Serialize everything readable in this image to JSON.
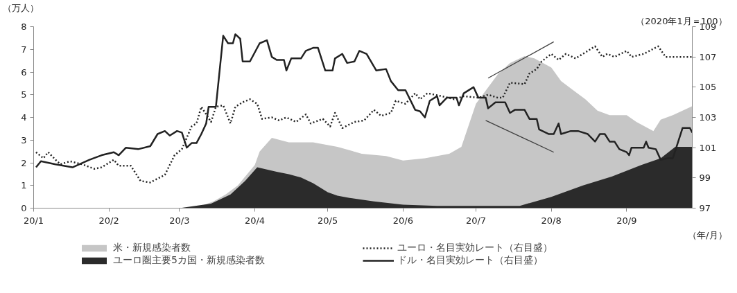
{
  "chart_data": {
    "type": "area",
    "ylabel": "（万人）",
    "y2label": "（2020年1月＝100）",
    "xlabel": "（年/月）",
    "xlim": [
      "2020-01-01",
      "2020-09-28"
    ],
    "xticks": [
      {
        "value": "2020-01-01",
        "label": "20/1"
      },
      {
        "value": "2020-02-01",
        "label": "20/2"
      },
      {
        "value": "2020-03-01",
        "label": "20/3"
      },
      {
        "value": "2020-04-01",
        "label": "20/4"
      },
      {
        "value": "2020-05-01",
        "label": "20/5"
      },
      {
        "value": "2020-06-01",
        "label": "20/6"
      },
      {
        "value": "2020-07-01",
        "label": "20/7"
      },
      {
        "value": "2020-08-01",
        "label": "20/8"
      },
      {
        "value": "2020-09-01",
        "label": "20/9"
      }
    ],
    "ylim": [
      0,
      8
    ],
    "yticks": [
      0,
      1,
      2,
      3,
      4,
      5,
      6,
      7,
      8
    ],
    "y2lim": [
      97,
      109
    ],
    "y2ticks": [
      97,
      99,
      101,
      103,
      105,
      107,
      109
    ],
    "grid": false,
    "legend": "bottom",
    "series": [
      {
        "name": "米・新規感染者数",
        "type": "area",
        "color": "#c6c6c6",
        "x": [
          "2020-03-01",
          "2020-03-10",
          "2020-03-15",
          "2020-03-20",
          "2020-03-25",
          "2020-04-01",
          "2020-04-03",
          "2020-04-08",
          "2020-04-15",
          "2020-04-25",
          "2020-05-05",
          "2020-05-15",
          "2020-05-25",
          "2020-06-01",
          "2020-06-10",
          "2020-06-20",
          "2020-06-25",
          "2020-07-01",
          "2020-07-10",
          "2020-07-15",
          "2020-07-21",
          "2020-07-25",
          "2020-08-01",
          "2020-08-05",
          "2020-08-10",
          "2020-08-15",
          "2020-08-20",
          "2020-08-25",
          "2020-09-01",
          "2020-09-05",
          "2020-09-12",
          "2020-09-15",
          "2020-09-20",
          "2020-09-28"
        ],
        "values": [
          0,
          0.1,
          0.3,
          0.6,
          1.0,
          1.9,
          2.5,
          3.1,
          2.9,
          2.9,
          2.7,
          2.4,
          2.3,
          2.1,
          2.2,
          2.4,
          2.7,
          4.6,
          5.9,
          6.4,
          6.7,
          6.6,
          6.2,
          5.6,
          5.2,
          4.8,
          4.3,
          4.1,
          4.1,
          3.8,
          3.4,
          3.9,
          4.1,
          4.5
        ]
      },
      {
        "name": "ユーロ圏主要5カ国・新規感染者数",
        "type": "area",
        "color": "#2b2b2b",
        "x": [
          "2020-03-01",
          "2020-03-14",
          "2020-03-22",
          "2020-03-28",
          "2020-04-02",
          "2020-04-10",
          "2020-04-15",
          "2020-04-20",
          "2020-04-25",
          "2020-05-01",
          "2020-05-05",
          "2020-05-10",
          "2020-05-20",
          "2020-06-01",
          "2020-06-15",
          "2020-07-01",
          "2020-07-19",
          "2020-08-01",
          "2020-08-14",
          "2020-08-26",
          "2020-09-07",
          "2020-09-15",
          "2020-09-21",
          "2020-09-28"
        ],
        "values": [
          0,
          0.2,
          0.6,
          1.2,
          1.8,
          1.6,
          1.5,
          1.35,
          1.1,
          0.7,
          0.55,
          0.45,
          0.3,
          0.15,
          0.1,
          0.1,
          0.1,
          0.5,
          1.0,
          1.4,
          1.9,
          2.2,
          2.7,
          2.7
        ]
      },
      {
        "name": "ユーロ・名目実効レート（右目盛）",
        "type": "line",
        "axis": "y2",
        "line_style": "dotted",
        "color": "#222222",
        "x": [
          "2020-01-02",
          "2020-01-05",
          "2020-01-07",
          "2020-01-10",
          "2020-01-12",
          "2020-01-16",
          "2020-01-21",
          "2020-01-26",
          "2020-01-29",
          "2020-02-03",
          "2020-02-05",
          "2020-02-10",
          "2020-02-14",
          "2020-02-18",
          "2020-02-24",
          "2020-02-28",
          "2020-03-02",
          "2020-03-06",
          "2020-03-08",
          "2020-03-10",
          "2020-03-12",
          "2020-03-14",
          "2020-03-16",
          "2020-03-19",
          "2020-03-22",
          "2020-03-24",
          "2020-03-27",
          "2020-03-30",
          "2020-04-02",
          "2020-04-04",
          "2020-04-08",
          "2020-04-11",
          "2020-04-14",
          "2020-04-18",
          "2020-04-22",
          "2020-04-24",
          "2020-04-29",
          "2020-05-02",
          "2020-05-04",
          "2020-05-07",
          "2020-05-12",
          "2020-05-16",
          "2020-05-20",
          "2020-05-23",
          "2020-05-27",
          "2020-05-29",
          "2020-06-02",
          "2020-06-06",
          "2020-06-08",
          "2020-06-11",
          "2020-06-17",
          "2020-06-22",
          "2020-06-26",
          "2020-07-02",
          "2020-07-06",
          "2020-07-10",
          "2020-07-12",
          "2020-07-15",
          "2020-07-21",
          "2020-07-23",
          "2020-07-26",
          "2020-07-28",
          "2020-08-01",
          "2020-08-04",
          "2020-08-07",
          "2020-08-11",
          "2020-08-14",
          "2020-08-19",
          "2020-08-22",
          "2020-08-24",
          "2020-08-27",
          "2020-09-01",
          "2020-09-03",
          "2020-09-08",
          "2020-09-14",
          "2020-09-17",
          "2020-09-22",
          "2020-09-28"
        ],
        "values": [
          100.7,
          100.3,
          100.7,
          100.2,
          99.9,
          100.1,
          99.9,
          99.6,
          99.7,
          100.2,
          99.8,
          99.8,
          98.8,
          98.7,
          99.2,
          100.5,
          100.9,
          102.4,
          102.6,
          103.7,
          103.2,
          102.7,
          103.7,
          103.8,
          102.6,
          103.7,
          104.0,
          104.2,
          103.9,
          102.9,
          103.0,
          102.8,
          103.0,
          102.7,
          103.2,
          102.6,
          102.9,
          102.4,
          103.3,
          102.3,
          102.7,
          102.8,
          103.5,
          103.1,
          103.3,
          104.1,
          103.9,
          104.6,
          104.2,
          104.6,
          104.4,
          104.2,
          104.4,
          104.3,
          104.5,
          104.3,
          104.3,
          105.3,
          105.2,
          105.9,
          106.2,
          106.7,
          107.2,
          106.8,
          107.2,
          106.9,
          107.2,
          107.7,
          107.0,
          107.2,
          107.0,
          107.4,
          107.0,
          107.2,
          107.7,
          107.0,
          107.0,
          107.0
        ]
      },
      {
        "name": "ドル・名目実効レート（右目盛）",
        "type": "line",
        "axis": "y2",
        "line_style": "solid",
        "color": "#222222",
        "x": [
          "2020-01-02",
          "2020-01-04",
          "2020-01-10",
          "2020-01-17",
          "2020-01-24",
          "2020-01-29",
          "2020-02-03",
          "2020-02-05",
          "2020-02-08",
          "2020-02-13",
          "2020-02-18",
          "2020-02-21",
          "2020-02-24",
          "2020-02-26",
          "2020-02-29",
          "2020-03-02",
          "2020-03-04",
          "2020-03-06",
          "2020-03-08",
          "2020-03-10",
          "2020-03-12",
          "2020-03-13",
          "2020-03-16",
          "2020-03-19",
          "2020-03-21",
          "2020-03-23",
          "2020-03-24",
          "2020-03-26",
          "2020-03-27",
          "2020-03-30",
          "2020-04-03",
          "2020-04-06",
          "2020-04-08",
          "2020-04-10",
          "2020-04-13",
          "2020-04-14",
          "2020-04-16",
          "2020-04-20",
          "2020-04-22",
          "2020-04-25",
          "2020-04-27",
          "2020-04-30",
          "2020-05-03",
          "2020-05-04",
          "2020-05-07",
          "2020-05-09",
          "2020-05-12",
          "2020-05-14",
          "2020-05-17",
          "2020-05-21",
          "2020-05-25",
          "2020-05-27",
          "2020-05-30",
          "2020-06-02",
          "2020-06-06",
          "2020-06-08",
          "2020-06-10",
          "2020-06-12",
          "2020-06-15",
          "2020-06-16",
          "2020-06-19",
          "2020-06-23",
          "2020-06-24",
          "2020-06-26",
          "2020-06-30",
          "2020-07-02",
          "2020-07-05",
          "2020-07-06",
          "2020-07-09",
          "2020-07-13",
          "2020-07-15",
          "2020-07-17",
          "2020-07-21",
          "2020-07-23",
          "2020-07-26",
          "2020-07-27",
          "2020-07-31",
          "2020-08-02",
          "2020-08-04",
          "2020-08-05",
          "2020-08-09",
          "2020-08-12",
          "2020-08-16",
          "2020-08-19",
          "2020-08-21",
          "2020-08-23",
          "2020-08-25",
          "2020-08-27",
          "2020-08-29",
          "2020-09-01",
          "2020-09-02",
          "2020-09-03",
          "2020-09-08",
          "2020-09-09",
          "2020-09-10",
          "2020-09-13",
          "2020-09-15",
          "2020-09-18",
          "2020-09-20",
          "2020-09-21",
          "2020-09-24",
          "2020-09-27",
          "2020-09-28"
        ],
        "values": [
          99.7,
          100.1,
          99.9,
          99.7,
          100.2,
          100.5,
          100.7,
          100.5,
          101.0,
          100.9,
          101.1,
          101.9,
          102.1,
          101.8,
          102.1,
          102.0,
          101.0,
          101.3,
          101.3,
          101.9,
          102.6,
          103.7,
          103.7,
          108.4,
          107.9,
          107.9,
          108.5,
          108.2,
          106.7,
          106.7,
          107.9,
          108.1,
          107.0,
          106.8,
          106.8,
          106.1,
          106.9,
          106.9,
          107.4,
          107.6,
          107.6,
          106.1,
          106.1,
          106.9,
          107.2,
          106.6,
          106.7,
          107.4,
          107.2,
          106.1,
          106.2,
          105.4,
          104.8,
          104.8,
          103.5,
          103.4,
          103.0,
          104.1,
          104.4,
          103.8,
          104.3,
          104.3,
          103.8,
          104.6,
          105.0,
          104.3,
          104.3,
          103.6,
          104.0,
          104.0,
          103.3,
          103.5,
          103.5,
          102.9,
          102.9,
          102.2,
          101.9,
          101.9,
          102.6,
          101.9,
          102.1,
          102.1,
          101.9,
          101.4,
          101.9,
          101.9,
          101.4,
          101.4,
          100.9,
          100.7,
          100.5,
          101.0,
          101.0,
          101.4,
          101.0,
          100.9,
          100.2,
          100.3,
          100.3,
          100.8,
          102.3,
          102.3,
          102.0
        ]
      },
      {
        "type": "line",
        "axis": "y2",
        "color": "#404040",
        "x": [
          "2020-07-06",
          "2020-08-02"
        ],
        "values": [
          105.6,
          108.0
        ]
      },
      {
        "type": "line",
        "axis": "y2",
        "color": "#404040",
        "x": [
          "2020-07-05",
          "2020-08-02"
        ],
        "values": [
          102.8,
          100.7
        ]
      }
    ]
  }
}
